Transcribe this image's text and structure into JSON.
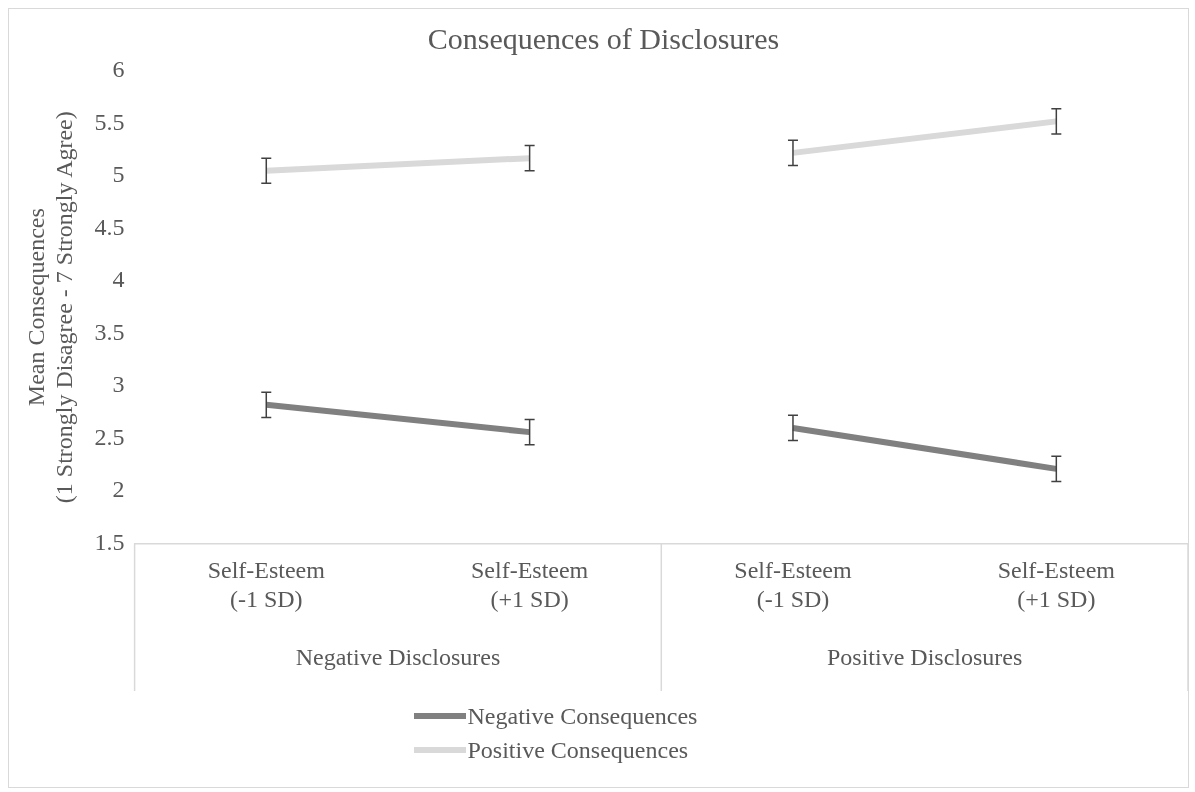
{
  "chart_data": {
    "type": "line",
    "title": "Consequences of Disclosures",
    "ylabel": "Mean Consequences\n(1 Strongly Disagree - 7 Strongly Agree)",
    "categories": [
      "Self-Esteem\n(-1 SD)",
      "Self-Esteem\n(+1 SD)",
      "Self-Esteem\n(-1 SD)",
      "Self-Esteem\n(+1 SD)"
    ],
    "annotations": [
      "Negative Disclosures",
      "Positive Disclosures"
    ],
    "series": [
      {
        "name": "Negative Consequences",
        "color": "#808080",
        "values": [
          2.82,
          2.56,
          2.6,
          2.21
        ],
        "errors": [
          0.12,
          0.12,
          0.12,
          0.12
        ]
      },
      {
        "name": "Positive Consequences",
        "color": "#d9d9d9",
        "values": [
          5.05,
          5.17,
          5.22,
          5.52
        ],
        "errors": [
          0.12,
          0.12,
          0.12,
          0.12
        ]
      }
    ],
    "ylim": [
      1.5,
      6
    ],
    "yticks": [
      1.5,
      2,
      2.5,
      3,
      3.5,
      4,
      4.5,
      5,
      5.5,
      6
    ],
    "grid": false,
    "legend": "bottom",
    "marker": "none",
    "line_style": "solid"
  }
}
